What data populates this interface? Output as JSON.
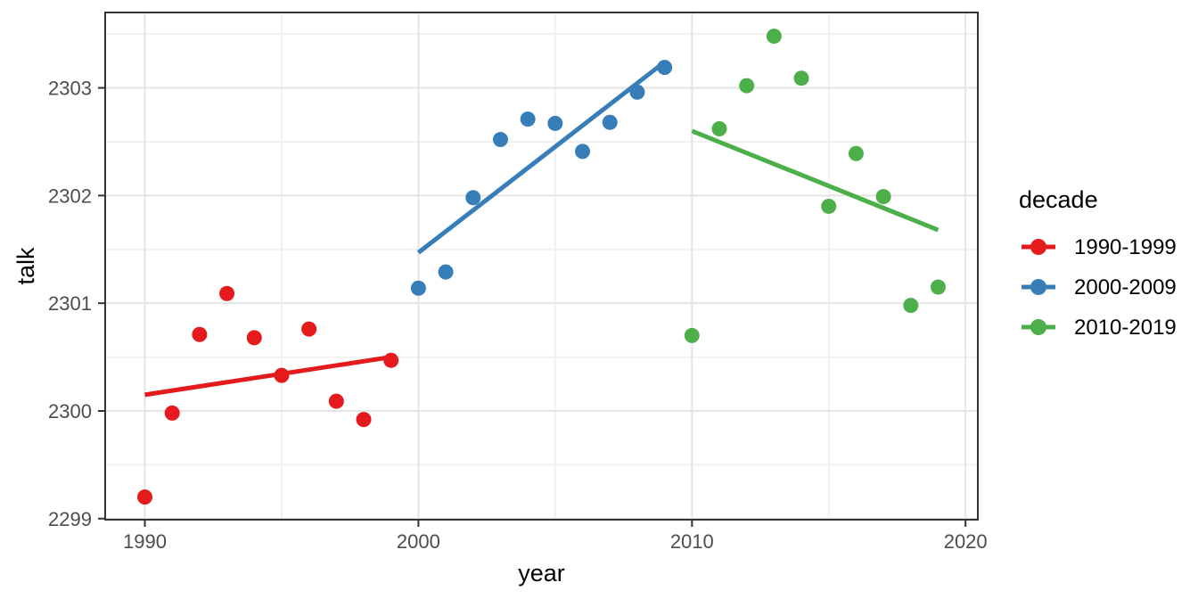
{
  "figure": {
    "background": "#ffffff"
  },
  "theme": {
    "panel_border": "#333333",
    "grid_major": "#e4e4e4",
    "grid_minor": "#f1f1f1",
    "tick_color": "#333333",
    "tick_label_color": "#4d4d4d",
    "text_color": "#000000"
  },
  "chart_data": {
    "type": "scatter",
    "title": "",
    "xlabel": "year",
    "ylabel": "talk",
    "grid": true,
    "xlim": [
      1988.55,
      2020.45
    ],
    "ylim": [
      2298.99,
      2303.7
    ],
    "x_ticks": [
      1990,
      2000,
      2010,
      2020
    ],
    "x_tick_labels": [
      "1990",
      "2000",
      "2010",
      "2020"
    ],
    "y_ticks": [
      2299,
      2300,
      2301,
      2302,
      2303
    ],
    "y_tick_labels": [
      "2299",
      "2300",
      "2301",
      "2302",
      "2303"
    ],
    "x_minor_ticks": [
      1995,
      2005,
      2015
    ],
    "y_minor_ticks": [
      2299.5,
      2300.5,
      2301.5,
      2302.5,
      2303.5
    ],
    "legend": {
      "title": "decade",
      "position": "right"
    },
    "series": [
      {
        "name": "1990-1999",
        "color": "#e41a1c",
        "x": [
          1990,
          1991,
          1992,
          1993,
          1994,
          1995,
          1996,
          1997,
          1998,
          1999
        ],
        "y": [
          2299.2,
          2299.98,
          2300.71,
          2301.09,
          2300.68,
          2300.33,
          2300.76,
          2300.09,
          2299.92,
          2300.47
        ],
        "trend": {
          "x": [
            1990,
            1999
          ],
          "y": [
            2300.15,
            2300.5
          ]
        }
      },
      {
        "name": "2000-2009",
        "color": "#377eb8",
        "x": [
          2000,
          2001,
          2002,
          2003,
          2004,
          2005,
          2006,
          2007,
          2008,
          2009
        ],
        "y": [
          2301.14,
          2301.29,
          2301.98,
          2302.52,
          2302.71,
          2302.67,
          2302.41,
          2302.68,
          2302.96,
          2303.19
        ],
        "trend": {
          "x": [
            2000,
            2009
          ],
          "y": [
            2301.47,
            2303.24
          ]
        }
      },
      {
        "name": "2010-2019",
        "color": "#4daf4a",
        "x": [
          2010,
          2011,
          2012,
          2013,
          2014,
          2015,
          2016,
          2017,
          2018,
          2019
        ],
        "y": [
          2300.7,
          2302.62,
          2303.02,
          2303.48,
          2303.09,
          2301.9,
          2302.39,
          2301.99,
          2300.98,
          2301.15
        ],
        "trend": {
          "x": [
            2010,
            2019
          ],
          "y": [
            2302.6,
            2301.68
          ]
        }
      }
    ]
  }
}
